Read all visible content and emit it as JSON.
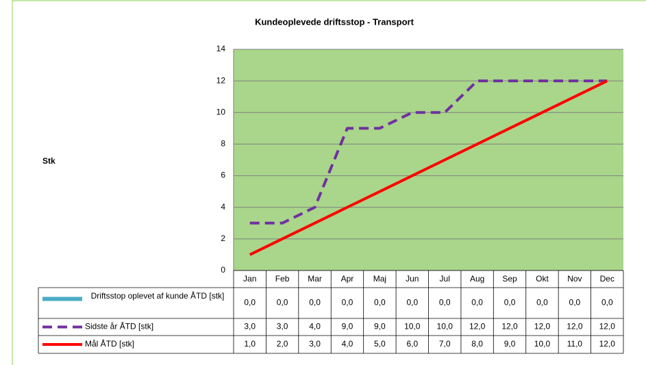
{
  "chart_data": {
    "type": "line",
    "title": "Kundeoplevede driftsstop - Transport",
    "y_label": "Stk",
    "categories": [
      "Jan",
      "Feb",
      "Mar",
      "Apr",
      "Maj",
      "Jun",
      "Jul",
      "Aug",
      "Sep",
      "Okt",
      "Nov",
      "Dec"
    ],
    "ylim": [
      0,
      14
    ],
    "yticks": [
      0,
      2,
      4,
      6,
      8,
      10,
      12,
      14
    ],
    "grid": true,
    "plot_background": "#a9d68a",
    "series": [
      {
        "name": "Driftsstop oplevet af kunde ÅTD [stk]",
        "type": "bar",
        "color": "#4bacc6",
        "values": [
          0,
          0,
          0,
          0,
          0,
          0,
          0,
          0,
          0,
          0,
          0,
          0
        ],
        "value_labels": [
          "0,0",
          "0,0",
          "0,0",
          "0,0",
          "0,0",
          "0,0",
          "0,0",
          "0,0",
          "0,0",
          "0,0",
          "0,0",
          "0,0"
        ]
      },
      {
        "name": "Sidste år ÅTD [stk]",
        "type": "line",
        "dashed": true,
        "color": "#7030a0",
        "values": [
          3,
          3,
          4,
          9,
          9,
          10,
          10,
          12,
          12,
          12,
          12,
          12
        ],
        "value_labels": [
          "3,0",
          "3,0",
          "4,0",
          "9,0",
          "9,0",
          "10,0",
          "10,0",
          "12,0",
          "12,0",
          "12,0",
          "12,0",
          "12,0"
        ]
      },
      {
        "name": "Mål ÅTD [stk]",
        "type": "line",
        "color": "#ff0000",
        "values": [
          1,
          2,
          3,
          4,
          5,
          6,
          7,
          8,
          9,
          10,
          11,
          12
        ],
        "value_labels": [
          "1,0",
          "2,0",
          "3,0",
          "4,0",
          "5,0",
          "6,0",
          "7,0",
          "8,0",
          "9,0",
          "10,0",
          "11,0",
          "12,0"
        ]
      }
    ]
  }
}
